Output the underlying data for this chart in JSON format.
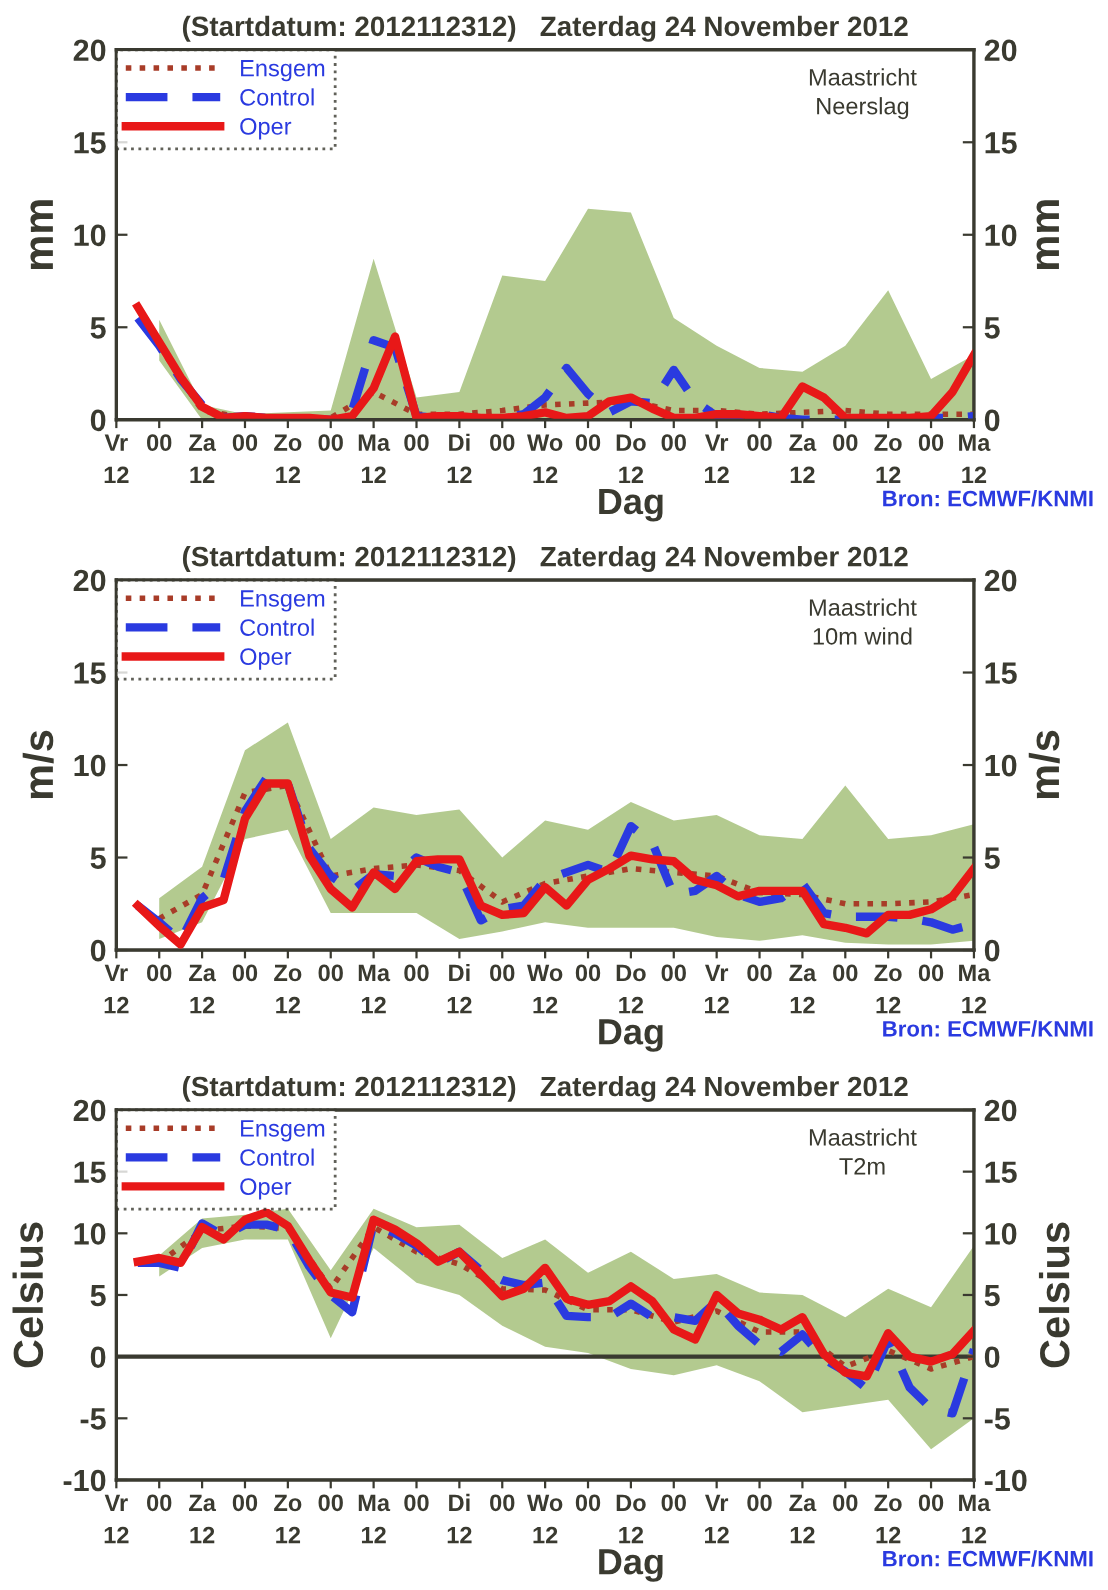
{
  "chart_data": [
    {
      "type": "line",
      "title": "(Startdatum: 2012112312)   Zaterdag 24 November 2012",
      "xlabel": "Dag",
      "ylabel": "mm",
      "y2label": "mm",
      "xlim": [
        "2012-11-23T12:00",
        "2012-12-03T12:00"
      ],
      "xticks": [
        {
          "value": "2012-11-23T12:00",
          "label": "Vr\n12"
        },
        {
          "value": "2012-11-24T00:00",
          "label": "00"
        },
        {
          "value": "2012-11-24T12:00",
          "label": "Za\n12"
        },
        {
          "value": "2012-11-25T00:00",
          "label": "00"
        },
        {
          "value": "2012-11-25T12:00",
          "label": "Zo\n12"
        },
        {
          "value": "2012-11-26T00:00",
          "label": "00"
        },
        {
          "value": "2012-11-26T12:00",
          "label": "Ma\n12"
        },
        {
          "value": "2012-11-27T00:00",
          "label": "00"
        },
        {
          "value": "2012-11-27T12:00",
          "label": "Di\n12"
        },
        {
          "value": "2012-11-28T00:00",
          "label": "00"
        },
        {
          "value": "2012-11-28T12:00",
          "label": "Wo\n12"
        },
        {
          "value": "2012-11-29T00:00",
          "label": "00"
        },
        {
          "value": "2012-11-29T12:00",
          "label": "Do\n12"
        },
        {
          "value": "2012-11-30T00:00",
          "label": "00"
        },
        {
          "value": "2012-11-30T12:00",
          "label": "Vr\n12"
        },
        {
          "value": "2012-12-01T00:00",
          "label": "00"
        },
        {
          "value": "2012-12-01T12:00",
          "label": "Za\n12"
        },
        {
          "value": "2012-12-02T00:00",
          "label": "00"
        },
        {
          "value": "2012-12-02T12:00",
          "label": "Zo\n12"
        },
        {
          "value": "2012-12-03T00:00",
          "label": "00"
        },
        {
          "value": "2012-12-03T12:00",
          "label": "Ma\n12"
        }
      ],
      "x": [
        "2012-11-23T18:00",
        "2012-11-24T00:00",
        "2012-11-24T06:00",
        "2012-11-24T12:00",
        "2012-11-24T18:00",
        "2012-11-25T00:00",
        "2012-11-25T06:00",
        "2012-11-25T12:00",
        "2012-11-25T18:00",
        "2012-11-26T00:00",
        "2012-11-26T06:00",
        "2012-11-26T12:00",
        "2012-11-26T18:00",
        "2012-11-27T00:00",
        "2012-11-27T06:00",
        "2012-11-27T12:00",
        "2012-11-27T18:00",
        "2012-11-28T00:00",
        "2012-11-28T06:00",
        "2012-11-28T12:00",
        "2012-11-28T18:00",
        "2012-11-29T00:00",
        "2012-11-29T06:00",
        "2012-11-29T12:00",
        "2012-11-29T18:00",
        "2012-11-30T00:00",
        "2012-11-30T06:00",
        "2012-11-30T12:00",
        "2012-11-30T18:00",
        "2012-12-01T00:00",
        "2012-12-01T06:00",
        "2012-12-01T12:00",
        "2012-12-01T18:00",
        "2012-12-02T00:00",
        "2012-12-02T06:00",
        "2012-12-02T12:00",
        "2012-12-02T18:00",
        "2012-12-03T00:00",
        "2012-12-03T06:00",
        "2012-12-03T12:00"
      ],
      "ylim": [
        0,
        20
      ],
      "yticks": [
        0,
        5,
        10,
        15,
        20
      ],
      "y2lim": [
        0,
        20
      ],
      "y2ticks": [
        0,
        5,
        10,
        15,
        20
      ],
      "grid": false,
      "legend": "top left",
      "annotations": [
        "Maastricht\nNeerslag",
        "Bron: ECMWF/KNMI"
      ],
      "series": [
        {
          "name": "Ensgem",
          "color": "#a83c28",
          "line_style": "dotted",
          "x": [
            "2012-11-24T00:00",
            "2012-11-24T12:00",
            "2012-11-25T00:00",
            "2012-11-25T12:00",
            "2012-11-26T00:00",
            "2012-11-26T12:00",
            "2012-11-27T00:00",
            "2012-11-27T12:00",
            "2012-11-28T00:00",
            "2012-11-28T12:00",
            "2012-11-29T00:00",
            "2012-11-29T12:00",
            "2012-11-30T00:00",
            "2012-11-30T12:00",
            "2012-12-01T00:00",
            "2012-12-01T12:00",
            "2012-12-02T00:00",
            "2012-12-02T12:00",
            "2012-12-03T00:00",
            "2012-12-03T12:00"
          ],
          "values": [
            4.0,
            0.5,
            0.1,
            0.1,
            0.1,
            1.5,
            0.3,
            0.3,
            0.5,
            0.8,
            0.9,
            1.0,
            0.5,
            0.5,
            0.3,
            0.4,
            0.5,
            0.3,
            0.3,
            0.3
          ],
          "lower": [
            3.2,
            0,
            0,
            0,
            0,
            0,
            0,
            0,
            0,
            0,
            0,
            0,
            0,
            0,
            0,
            0,
            0,
            0,
            0,
            0
          ],
          "upper": [
            5.4,
            0.8,
            0.3,
            0.4,
            0.5,
            8.7,
            1.2,
            1.5,
            7.8,
            7.5,
            11.4,
            11.2,
            5.5,
            4.0,
            2.8,
            2.6,
            4.0,
            7.0,
            2.2,
            3.5
          ]
        },
        {
          "name": "Control",
          "color": "#2a3ae0",
          "line_style": "dashed",
          "values": [
            5.5,
            4.0,
            2.2,
            0.8,
            0.1,
            0.2,
            0.1,
            0.0,
            0.0,
            0.0,
            0.5,
            4.3,
            3.9,
            0.2,
            0.1,
            0.0,
            0.0,
            0.1,
            0.3,
            1.2,
            2.8,
            1.4,
            0.4,
            1.0,
            0.9,
            2.7,
            1.0,
            0.2,
            0.2,
            0.3,
            0.1,
            0.0,
            0.0,
            0.0,
            0.0,
            0.0,
            0.0,
            0.1,
            0.1,
            0.2
          ]
        },
        {
          "name": "Oper",
          "color": "#e81818",
          "line_style": "solid",
          "values": [
            6.1,
            4.2,
            2.3,
            0.7,
            0.1,
            0.2,
            0.1,
            0.1,
            0.1,
            0.0,
            0.2,
            1.7,
            4.5,
            0.1,
            0.2,
            0.2,
            0.1,
            0.1,
            0.2,
            0.4,
            0.1,
            0.2,
            1.0,
            1.2,
            0.6,
            0.1,
            0.1,
            0.3,
            0.3,
            0.2,
            0.1,
            1.8,
            1.2,
            0.1,
            0.1,
            0.1,
            0.1,
            0.2,
            1.5,
            3.5
          ]
        }
      ]
    },
    {
      "type": "line",
      "title": "(Startdatum: 2012112312)   Zaterdag 24 November 2012",
      "xlabel": "Dag",
      "ylabel": "m/s",
      "y2label": "m/s",
      "xlim": [
        "2012-11-23T12:00",
        "2012-12-03T12:00"
      ],
      "xticks": [
        {
          "value": "2012-11-23T12:00",
          "label": "Vr\n12"
        },
        {
          "value": "2012-11-24T00:00",
          "label": "00"
        },
        {
          "value": "2012-11-24T12:00",
          "label": "Za\n12"
        },
        {
          "value": "2012-11-25T00:00",
          "label": "00"
        },
        {
          "value": "2012-11-25T12:00",
          "label": "Zo\n12"
        },
        {
          "value": "2012-11-26T00:00",
          "label": "00"
        },
        {
          "value": "2012-11-26T12:00",
          "label": "Ma\n12"
        },
        {
          "value": "2012-11-27T00:00",
          "label": "00"
        },
        {
          "value": "2012-11-27T12:00",
          "label": "Di\n12"
        },
        {
          "value": "2012-11-28T00:00",
          "label": "00"
        },
        {
          "value": "2012-11-28T12:00",
          "label": "Wo\n12"
        },
        {
          "value": "2012-11-29T00:00",
          "label": "00"
        },
        {
          "value": "2012-11-29T12:00",
          "label": "Do\n12"
        },
        {
          "value": "2012-11-30T00:00",
          "label": "00"
        },
        {
          "value": "2012-11-30T12:00",
          "label": "Vr\n12"
        },
        {
          "value": "2012-12-01T00:00",
          "label": "00"
        },
        {
          "value": "2012-12-01T12:00",
          "label": "Za\n12"
        },
        {
          "value": "2012-12-02T00:00",
          "label": "00"
        },
        {
          "value": "2012-12-02T12:00",
          "label": "Zo\n12"
        },
        {
          "value": "2012-12-03T00:00",
          "label": "00"
        },
        {
          "value": "2012-12-03T12:00",
          "label": "Ma\n12"
        }
      ],
      "x": [
        "2012-11-23T18:00",
        "2012-11-24T00:00",
        "2012-11-24T06:00",
        "2012-11-24T12:00",
        "2012-11-24T18:00",
        "2012-11-25T00:00",
        "2012-11-25T06:00",
        "2012-11-25T12:00",
        "2012-11-25T18:00",
        "2012-11-26T00:00",
        "2012-11-26T06:00",
        "2012-11-26T12:00",
        "2012-11-26T18:00",
        "2012-11-27T00:00",
        "2012-11-27T06:00",
        "2012-11-27T12:00",
        "2012-11-27T18:00",
        "2012-11-28T00:00",
        "2012-11-28T06:00",
        "2012-11-28T12:00",
        "2012-11-28T18:00",
        "2012-11-29T00:00",
        "2012-11-29T06:00",
        "2012-11-29T12:00",
        "2012-11-29T18:00",
        "2012-11-30T00:00",
        "2012-11-30T06:00",
        "2012-11-30T12:00",
        "2012-11-30T18:00",
        "2012-12-01T00:00",
        "2012-12-01T06:00",
        "2012-12-01T12:00",
        "2012-12-01T18:00",
        "2012-12-02T00:00",
        "2012-12-02T06:00",
        "2012-12-02T12:00",
        "2012-12-02T18:00",
        "2012-12-03T00:00",
        "2012-12-03T06:00",
        "2012-12-03T12:00"
      ],
      "ylim": [
        0,
        20
      ],
      "yticks": [
        0,
        5,
        10,
        15,
        20
      ],
      "y2lim": [
        0,
        20
      ],
      "y2ticks": [
        0,
        5,
        10,
        15,
        20
      ],
      "grid": false,
      "legend": "top left",
      "annotations": [
        "Maastricht\n10m wind",
        "Bron: ECMWF/KNMI"
      ],
      "series": [
        {
          "name": "Ensgem",
          "color": "#a83c28",
          "line_style": "dotted",
          "x": [
            "2012-11-24T00:00",
            "2012-11-24T12:00",
            "2012-11-25T00:00",
            "2012-11-25T12:00",
            "2012-11-26T00:00",
            "2012-11-26T12:00",
            "2012-11-27T00:00",
            "2012-11-27T12:00",
            "2012-11-28T00:00",
            "2012-11-28T12:00",
            "2012-11-29T00:00",
            "2012-11-29T12:00",
            "2012-11-30T00:00",
            "2012-11-30T12:00",
            "2012-12-01T00:00",
            "2012-12-01T12:00",
            "2012-12-02T00:00",
            "2012-12-02T12:00",
            "2012-12-03T00:00",
            "2012-12-03T12:00"
          ],
          "values": [
            1.7,
            3.0,
            8.5,
            8.9,
            4.0,
            4.4,
            4.6,
            4.3,
            2.6,
            3.6,
            4.0,
            4.4,
            4.2,
            4.0,
            3.1,
            3.0,
            2.5,
            2.5,
            2.6,
            3.0
          ],
          "lower": [
            0.6,
            1.5,
            6.0,
            6.5,
            2.0,
            2.0,
            2.0,
            0.6,
            1.0,
            1.5,
            1.2,
            1.2,
            1.2,
            0.7,
            0.5,
            0.8,
            0.4,
            0.3,
            0.3,
            0.5
          ],
          "upper": [
            2.8,
            4.5,
            10.8,
            12.3,
            6.0,
            7.7,
            7.3,
            7.6,
            5.0,
            7.0,
            6.5,
            8.0,
            7.0,
            7.3,
            6.2,
            6.0,
            8.9,
            6.0,
            6.2,
            6.8
          ]
        },
        {
          "name": "Control",
          "color": "#2a3ae0",
          "line_style": "dashed",
          "values": [
            2.4,
            1.5,
            0.5,
            2.8,
            3.8,
            7.5,
            9.3,
            9.0,
            5.5,
            4.0,
            3.2,
            4.1,
            4.0,
            5.0,
            4.5,
            4.2,
            1.6,
            2.2,
            2.4,
            3.8,
            4.2,
            4.6,
            4.2,
            6.7,
            5.8,
            3.0,
            3.2,
            4.0,
            3.0,
            2.6,
            2.8,
            3.6,
            2.0,
            1.8,
            1.8,
            1.8,
            1.7,
            1.5,
            1.1,
            1.4
          ]
        },
        {
          "name": "Oper",
          "color": "#e81818",
          "line_style": "solid",
          "values": [
            2.4,
            1.3,
            0.3,
            2.3,
            2.7,
            7.1,
            9.0,
            9.0,
            5.1,
            3.3,
            2.3,
            4.2,
            3.3,
            4.8,
            4.9,
            4.9,
            2.4,
            1.9,
            2.0,
            3.4,
            2.4,
            3.8,
            4.4,
            5.1,
            4.9,
            4.8,
            3.8,
            3.5,
            2.9,
            3.2,
            3.2,
            3.2,
            1.4,
            1.2,
            0.9,
            1.9,
            1.9,
            2.2,
            2.9,
            4.4
          ]
        }
      ]
    },
    {
      "type": "line",
      "title": "(Startdatum: 2012112312)   Zaterdag 24 November 2012",
      "xlabel": "Dag",
      "ylabel": "Celsius",
      "y2label": "Celsius",
      "xlim": [
        "2012-11-23T12:00",
        "2012-12-03T12:00"
      ],
      "xticks": [
        {
          "value": "2012-11-23T12:00",
          "label": "Vr\n12"
        },
        {
          "value": "2012-11-24T00:00",
          "label": "00"
        },
        {
          "value": "2012-11-24T12:00",
          "label": "Za\n12"
        },
        {
          "value": "2012-11-25T00:00",
          "label": "00"
        },
        {
          "value": "2012-11-25T12:00",
          "label": "Zo\n12"
        },
        {
          "value": "2012-11-26T00:00",
          "label": "00"
        },
        {
          "value": "2012-11-26T12:00",
          "label": "Ma\n12"
        },
        {
          "value": "2012-11-27T00:00",
          "label": "00"
        },
        {
          "value": "2012-11-27T12:00",
          "label": "Di\n12"
        },
        {
          "value": "2012-11-28T00:00",
          "label": "00"
        },
        {
          "value": "2012-11-28T12:00",
          "label": "Wo\n12"
        },
        {
          "value": "2012-11-29T00:00",
          "label": "00"
        },
        {
          "value": "2012-11-29T12:00",
          "label": "Do\n12"
        },
        {
          "value": "2012-11-30T00:00",
          "label": "00"
        },
        {
          "value": "2012-11-30T12:00",
          "label": "Vr\n12"
        },
        {
          "value": "2012-12-01T00:00",
          "label": "00"
        },
        {
          "value": "2012-12-01T12:00",
          "label": "Za\n12"
        },
        {
          "value": "2012-12-02T00:00",
          "label": "00"
        },
        {
          "value": "2012-12-02T12:00",
          "label": "Zo\n12"
        },
        {
          "value": "2012-12-03T00:00",
          "label": "00"
        },
        {
          "value": "2012-12-03T12:00",
          "label": "Ma\n12"
        }
      ],
      "x": [
        "2012-11-23T18:00",
        "2012-11-24T00:00",
        "2012-11-24T06:00",
        "2012-11-24T12:00",
        "2012-11-24T18:00",
        "2012-11-25T00:00",
        "2012-11-25T06:00",
        "2012-11-25T12:00",
        "2012-11-25T18:00",
        "2012-11-26T00:00",
        "2012-11-26T06:00",
        "2012-11-26T12:00",
        "2012-11-26T18:00",
        "2012-11-27T00:00",
        "2012-11-27T06:00",
        "2012-11-27T12:00",
        "2012-11-27T18:00",
        "2012-11-28T00:00",
        "2012-11-28T06:00",
        "2012-11-28T12:00",
        "2012-11-28T18:00",
        "2012-11-29T00:00",
        "2012-11-29T06:00",
        "2012-11-29T12:00",
        "2012-11-29T18:00",
        "2012-11-30T00:00",
        "2012-11-30T06:00",
        "2012-11-30T12:00",
        "2012-11-30T18:00",
        "2012-12-01T00:00",
        "2012-12-01T06:00",
        "2012-12-01T12:00",
        "2012-12-01T18:00",
        "2012-12-02T00:00",
        "2012-12-02T06:00",
        "2012-12-02T12:00",
        "2012-12-02T18:00",
        "2012-12-03T00:00",
        "2012-12-03T06:00",
        "2012-12-03T12:00"
      ],
      "ylim": [
        -10,
        20
      ],
      "yticks": [
        -10,
        -5,
        0,
        5,
        10,
        15,
        20
      ],
      "y2lim": [
        -10,
        20
      ],
      "y2ticks": [
        -10,
        -5,
        0,
        5,
        10,
        15,
        20
      ],
      "grid": false,
      "legend": "top left",
      "ref_lines": [
        {
          "axis": "y",
          "value": 0,
          "color": "#3a3a30"
        }
      ],
      "annotations": [
        "Maastricht\nT2m",
        "Bron: ECMWF/KNMI"
      ],
      "series": [
        {
          "name": "Ensgem",
          "color": "#a83c28",
          "line_style": "dotted",
          "x": [
            "2012-11-24T00:00",
            "2012-11-24T12:00",
            "2012-11-25T00:00",
            "2012-11-25T12:00",
            "2012-11-26T00:00",
            "2012-11-26T12:00",
            "2012-11-27T00:00",
            "2012-11-27T12:00",
            "2012-11-28T00:00",
            "2012-11-28T12:00",
            "2012-11-29T00:00",
            "2012-11-29T12:00",
            "2012-11-30T00:00",
            "2012-11-30T12:00",
            "2012-12-01T00:00",
            "2012-12-01T12:00",
            "2012-12-02T00:00",
            "2012-12-02T12:00",
            "2012-12-03T00:00",
            "2012-12-03T12:00"
          ],
          "values": [
            7.6,
            10.2,
            10.6,
            10.4,
            5.5,
            10.5,
            8.5,
            7.5,
            5.5,
            5.4,
            3.8,
            3.8,
            2.8,
            3.7,
            2.0,
            2.0,
            -0.8,
            0.5,
            -1.0,
            0.0
          ],
          "lower": [
            6.5,
            8.8,
            9.5,
            9.5,
            1.5,
            8.8,
            6.0,
            5.0,
            2.5,
            0.8,
            0.3,
            -1.0,
            -1.5,
            -0.7,
            -2.0,
            -4.5,
            -4.0,
            -3.5,
            -7.5,
            -5.0
          ],
          "upper": [
            8.2,
            11.2,
            11.5,
            12.0,
            7.0,
            12.0,
            10.5,
            10.7,
            8.0,
            9.5,
            6.8,
            8.5,
            6.3,
            6.7,
            5.2,
            5.0,
            3.2,
            5.5,
            4.0,
            9.0
          ]
        },
        {
          "name": "Control",
          "color": "#2a3ae0",
          "line_style": "dashed",
          "values": [
            7.6,
            7.6,
            7.2,
            10.8,
            9.8,
            10.7,
            10.7,
            10.3,
            7.3,
            5.0,
            3.6,
            10.8,
            10.0,
            9.0,
            7.6,
            8.5,
            7.0,
            6.2,
            5.8,
            6.0,
            3.3,
            3.2,
            3.2,
            4.3,
            3.2,
            3.2,
            2.9,
            4.5,
            2.5,
            1.0,
            0.4,
            1.8,
            -0.2,
            -1.2,
            -2.6,
            1.4,
            -2.5,
            -4.2,
            -4.6,
            0.6
          ]
        },
        {
          "name": "Oper",
          "color": "#e81818",
          "line_style": "solid",
          "values": [
            7.7,
            8.0,
            7.6,
            10.5,
            9.5,
            11.1,
            11.7,
            10.6,
            7.8,
            5.2,
            4.8,
            11.1,
            10.3,
            9.2,
            7.7,
            8.5,
            6.7,
            4.9,
            5.5,
            7.2,
            4.7,
            4.2,
            4.5,
            5.7,
            4.5,
            2.2,
            1.4,
            5.0,
            3.5,
            3.0,
            2.2,
            3.2,
            0.2,
            -1.3,
            -1.6,
            1.9,
            0.0,
            -0.4,
            0.2,
            2.1
          ]
        }
      ]
    }
  ]
}
